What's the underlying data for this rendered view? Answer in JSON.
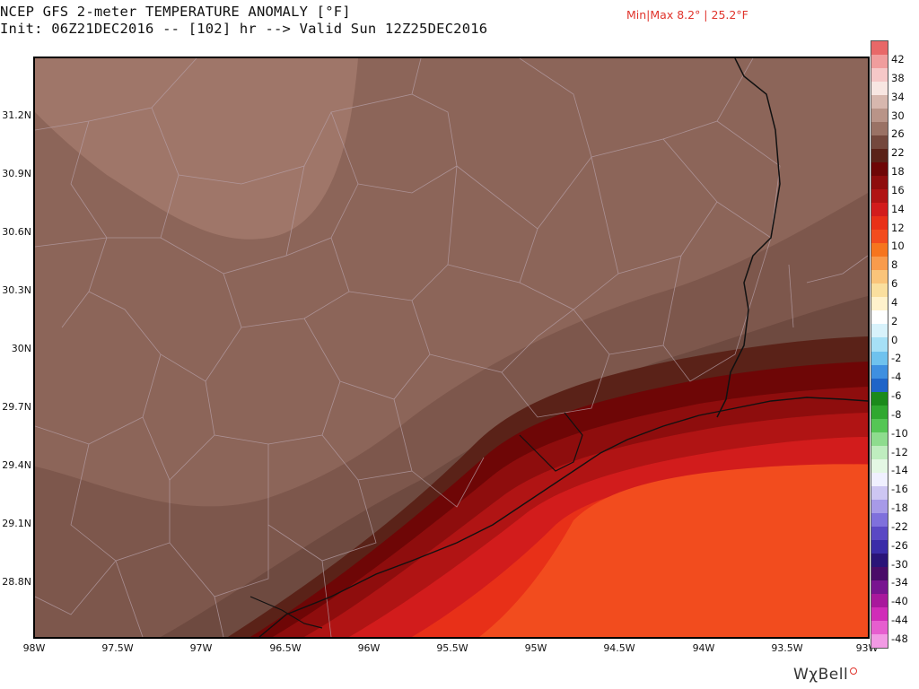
{
  "header": {
    "title_line1": "NCEP GFS 2-meter TEMPERATURE ANOMALY [°F]",
    "title_line2": "Init: 06Z21DEC2016 -- [102] hr --> Valid Sun 12Z25DEC2016",
    "minmax": "Min|Max 8.2° | 25.2°F"
  },
  "axes": {
    "latitudes": [
      "31.2N",
      "30.9N",
      "30.6N",
      "30.3N",
      "30N",
      "29.7N",
      "29.4N",
      "29.1N",
      "28.8N"
    ],
    "longitudes": [
      "98W",
      "97.5W",
      "97W",
      "96.5W",
      "96W",
      "95.5W",
      "95W",
      "94.5W",
      "94W",
      "93.5W",
      "93W"
    ]
  },
  "legend": {
    "labels": [
      "42",
      "38",
      "34",
      "30",
      "26",
      "22",
      "18",
      "16",
      "14",
      "12",
      "10",
      "8",
      "6",
      "4",
      "2",
      "0",
      "-2",
      "-4",
      "-6",
      "-8",
      "-10",
      "-12",
      "-14",
      "-16",
      "-18",
      "-22",
      "-26",
      "-30",
      "-34",
      "-40",
      "-44",
      "-48"
    ],
    "colors": [
      "#e86868",
      "#f09d9d",
      "#f6c8c8",
      "#f8e6e2",
      "#d7b7ae",
      "#b99488",
      "#9a7265",
      "#74483d",
      "#5a2218",
      "#6e0606",
      "#8e0d0d",
      "#b01414",
      "#d21c1c",
      "#e83018",
      "#f24c1e",
      "#f6751e",
      "#f89b4c",
      "#fac47a",
      "#fadf9e",
      "#fff2cc",
      "#ffffff",
      "#d8f2fb",
      "#a6e0f6",
      "#6fc2ee",
      "#3e8fe0",
      "#1f64c8",
      "#1b8a1b",
      "#30a830",
      "#55c655",
      "#8edc8e",
      "#bfedbf",
      "#e4f7e4",
      "#f0f0ff",
      "#cdc6f2",
      "#a79ae8",
      "#7f70dc",
      "#5a48c4",
      "#3a2ca8",
      "#2a1478",
      "#4a0c68",
      "#781490",
      "#a8189c",
      "#d02cb8",
      "#e65ecf",
      "#f29ae4"
    ]
  },
  "logo": {
    "text": "WχBell"
  }
}
